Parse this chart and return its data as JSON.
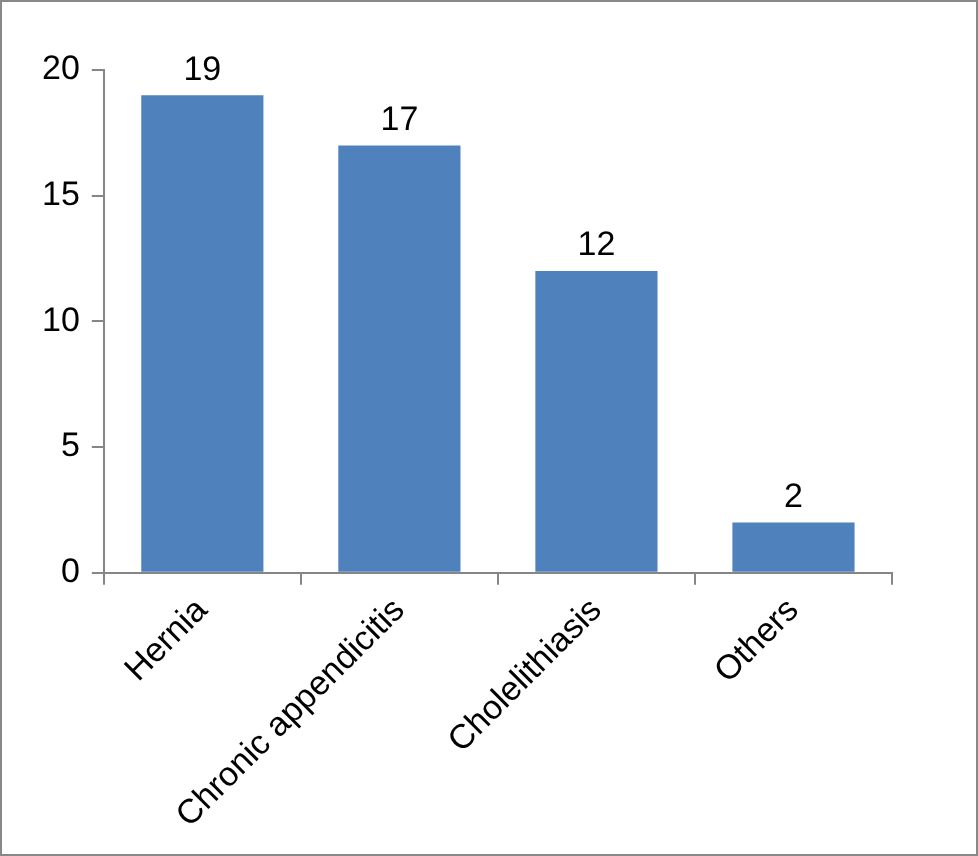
{
  "chart_data": {
    "type": "bar",
    "categories": [
      "Hernia",
      "Chronic appendicitis",
      "Cholelithiasis",
      "Others"
    ],
    "values": [
      19,
      17,
      12,
      2
    ],
    "color": "#4f81bd",
    "ylim": [
      0,
      20
    ],
    "yticks": [
      0,
      5,
      10,
      15,
      20
    ],
    "grid": false,
    "legend": false,
    "data_labels": true
  }
}
